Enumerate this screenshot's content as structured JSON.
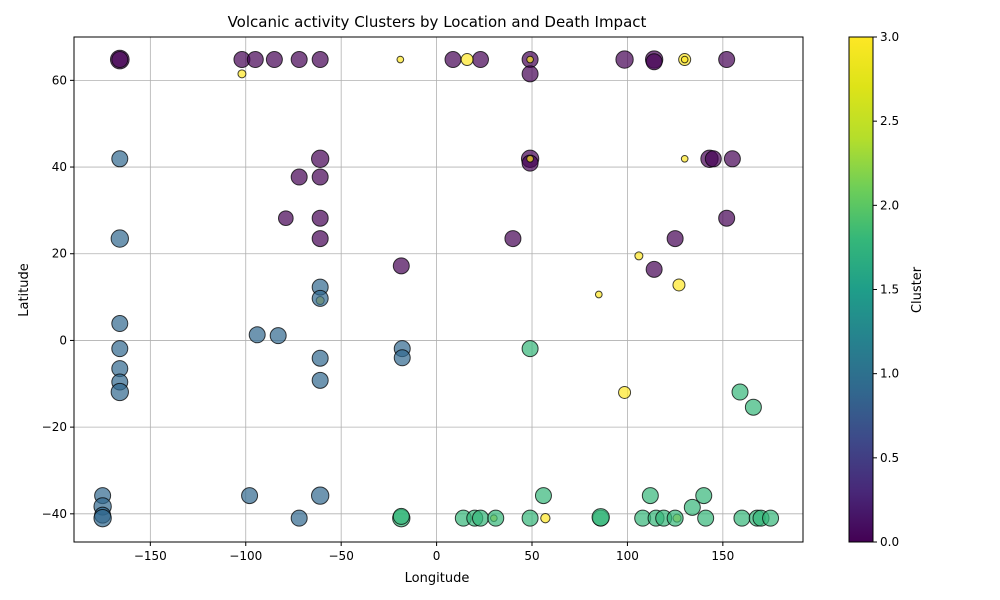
{
  "chart_data": {
    "type": "scatter",
    "title": "Volcanic activity Clusters by Location and Death Impact",
    "xlabel": "Longitude",
    "ylabel": "Latitude",
    "xlim": [
      -190,
      192
    ],
    "ylim": [
      -46.5,
      70
    ],
    "x_ticks": [
      -150,
      -100,
      -50,
      0,
      50,
      100,
      150
    ],
    "y_ticks": [
      -40,
      -20,
      0,
      20,
      40,
      60
    ],
    "x_tick_labels": [
      "−150",
      "−100",
      "−50",
      "0",
      "50",
      "100",
      "150"
    ],
    "y_tick_labels": [
      "−40",
      "−20",
      "0",
      "20",
      "40",
      "60"
    ],
    "grid": true,
    "colorbar": {
      "label": "Cluster",
      "range": [
        0,
        3
      ],
      "ticks": [
        0.0,
        0.5,
        1.0,
        1.5,
        2.0,
        2.5,
        3.0
      ],
      "tick_labels": [
        "0.0",
        "0.5",
        "1.0",
        "1.5",
        "2.0",
        "2.5",
        "3.0"
      ],
      "colormap": "viridis"
    },
    "points": [
      {
        "x": -166,
        "y": 64.8,
        "cluster": 0,
        "size": 14
      },
      {
        "x": -166,
        "y": 64.8,
        "cluster": 0,
        "size": 12
      },
      {
        "x": -102,
        "y": 64.8,
        "cluster": 0,
        "size": 12
      },
      {
        "x": -95,
        "y": 64.8,
        "cluster": 0,
        "size": 12
      },
      {
        "x": -85,
        "y": 64.8,
        "cluster": 0,
        "size": 12
      },
      {
        "x": -72,
        "y": 64.8,
        "cluster": 0,
        "size": 12
      },
      {
        "x": -61,
        "y": 64.8,
        "cluster": 0,
        "size": 12
      },
      {
        "x": 8.6,
        "y": 64.8,
        "cluster": 0,
        "size": 12
      },
      {
        "x": 23,
        "y": 64.8,
        "cluster": 0,
        "size": 12
      },
      {
        "x": 49,
        "y": 64.8,
        "cluster": 0,
        "size": 12
      },
      {
        "x": 49,
        "y": 61.5,
        "cluster": 0,
        "size": 12
      },
      {
        "x": 98.5,
        "y": 64.8,
        "cluster": 0,
        "size": 13
      },
      {
        "x": 114,
        "y": 64.8,
        "cluster": 0,
        "size": 13
      },
      {
        "x": 114,
        "y": 64.3,
        "cluster": 0,
        "size": 12
      },
      {
        "x": 152,
        "y": 64.8,
        "cluster": 0,
        "size": 12
      },
      {
        "x": -61,
        "y": 41.9,
        "cluster": 0,
        "size": 13
      },
      {
        "x": 49,
        "y": 41.9,
        "cluster": 0,
        "size": 13
      },
      {
        "x": 49,
        "y": 40.9,
        "cluster": 0,
        "size": 12
      },
      {
        "x": 143,
        "y": 41.9,
        "cluster": 0,
        "size": 13
      },
      {
        "x": 145,
        "y": 41.9,
        "cluster": 0,
        "size": 12
      },
      {
        "x": 155,
        "y": 41.9,
        "cluster": 0,
        "size": 12
      },
      {
        "x": -72,
        "y": 37.7,
        "cluster": 0,
        "size": 12
      },
      {
        "x": -61,
        "y": 37.7,
        "cluster": 0,
        "size": 12
      },
      {
        "x": -79,
        "y": 28.2,
        "cluster": 0,
        "size": 11
      },
      {
        "x": -61,
        "y": 28.2,
        "cluster": 0,
        "size": 12
      },
      {
        "x": 152,
        "y": 28.2,
        "cluster": 0,
        "size": 12
      },
      {
        "x": -61,
        "y": 23.5,
        "cluster": 0,
        "size": 12
      },
      {
        "x": 40,
        "y": 23.5,
        "cluster": 0,
        "size": 12
      },
      {
        "x": 125,
        "y": 23.5,
        "cluster": 0,
        "size": 12
      },
      {
        "x": -18.5,
        "y": 17.2,
        "cluster": 0,
        "size": 12
      },
      {
        "x": 114,
        "y": 16.4,
        "cluster": 0,
        "size": 12
      },
      {
        "x": -102,
        "y": 61.5,
        "cluster": 3,
        "size": 6
      },
      {
        "x": -19,
        "y": 64.8,
        "cluster": 3,
        "size": 5
      },
      {
        "x": 16,
        "y": 64.8,
        "cluster": 3,
        "size": 9
      },
      {
        "x": 49,
        "y": 64.8,
        "cluster": 3,
        "size": 5
      },
      {
        "x": 130,
        "y": 64.8,
        "cluster": 3,
        "size": 9
      },
      {
        "x": 130,
        "y": 64.8,
        "cluster": 3,
        "size": 5
      },
      {
        "x": 49,
        "y": 41.9,
        "cluster": 3,
        "size": 5
      },
      {
        "x": 130,
        "y": 41.9,
        "cluster": 3,
        "size": 5
      },
      {
        "x": 106,
        "y": 19.5,
        "cluster": 3,
        "size": 6
      },
      {
        "x": 127,
        "y": 12.8,
        "cluster": 3,
        "size": 9
      },
      {
        "x": 85,
        "y": 10.6,
        "cluster": 3,
        "size": 5
      },
      {
        "x": -61,
        "y": 9.2,
        "cluster": 3,
        "size": 6
      },
      {
        "x": 98.5,
        "y": -12,
        "cluster": 3,
        "size": 9
      },
      {
        "x": 57,
        "y": -41,
        "cluster": 3,
        "size": 7
      },
      {
        "x": 126,
        "y": -41,
        "cluster": 3,
        "size": 6
      },
      {
        "x": 30,
        "y": -41,
        "cluster": 3,
        "size": 5
      },
      {
        "x": -166,
        "y": 41.9,
        "cluster": 1,
        "size": 12
      },
      {
        "x": -166,
        "y": 23.5,
        "cluster": 1,
        "size": 13
      },
      {
        "x": -61,
        "y": 12.3,
        "cluster": 1,
        "size": 12
      },
      {
        "x": -61,
        "y": 9.7,
        "cluster": 1,
        "size": 12
      },
      {
        "x": -166,
        "y": 3.9,
        "cluster": 1,
        "size": 12
      },
      {
        "x": -94,
        "y": 1.3,
        "cluster": 1,
        "size": 12
      },
      {
        "x": -83,
        "y": 1.1,
        "cluster": 1,
        "size": 12
      },
      {
        "x": -166,
        "y": -1.9,
        "cluster": 1,
        "size": 12
      },
      {
        "x": -18,
        "y": -1.9,
        "cluster": 1,
        "size": 12
      },
      {
        "x": -18,
        "y": -4,
        "cluster": 1,
        "size": 12
      },
      {
        "x": -61,
        "y": -4.1,
        "cluster": 1,
        "size": 12
      },
      {
        "x": -166,
        "y": -6.5,
        "cluster": 1,
        "size": 12
      },
      {
        "x": -61,
        "y": -9.2,
        "cluster": 1,
        "size": 12
      },
      {
        "x": -166,
        "y": -9.6,
        "cluster": 1,
        "size": 12
      },
      {
        "x": -166,
        "y": -11.9,
        "cluster": 1,
        "size": 13
      },
      {
        "x": -175,
        "y": -35.8,
        "cluster": 1,
        "size": 12
      },
      {
        "x": -98,
        "y": -35.8,
        "cluster": 1,
        "size": 12
      },
      {
        "x": -61,
        "y": -35.8,
        "cluster": 1,
        "size": 13
      },
      {
        "x": -175,
        "y": -38.3,
        "cluster": 1,
        "size": 13
      },
      {
        "x": -175,
        "y": -40.3,
        "cluster": 1,
        "size": 12
      },
      {
        "x": -175,
        "y": -41,
        "cluster": 1,
        "size": 13
      },
      {
        "x": -72,
        "y": -41,
        "cluster": 1,
        "size": 12
      },
      {
        "x": 49,
        "y": -1.9,
        "cluster": 2,
        "size": 12
      },
      {
        "x": 159,
        "y": -11.9,
        "cluster": 2,
        "size": 12
      },
      {
        "x": 166,
        "y": -15.4,
        "cluster": 2,
        "size": 12
      },
      {
        "x": 56,
        "y": -35.8,
        "cluster": 2,
        "size": 12
      },
      {
        "x": 112,
        "y": -35.8,
        "cluster": 2,
        "size": 12
      },
      {
        "x": 140,
        "y": -35.8,
        "cluster": 2,
        "size": 12
      },
      {
        "x": 134,
        "y": -38.5,
        "cluster": 2,
        "size": 12
      },
      {
        "x": -18.5,
        "y": -41,
        "cluster": 2,
        "size": 13
      },
      {
        "x": -18.5,
        "y": -40.6,
        "cluster": 2,
        "size": 12
      },
      {
        "x": 14,
        "y": -41,
        "cluster": 2,
        "size": 12
      },
      {
        "x": 20,
        "y": -41,
        "cluster": 2,
        "size": 12
      },
      {
        "x": 23,
        "y": -41,
        "cluster": 2,
        "size": 12
      },
      {
        "x": 31,
        "y": -41,
        "cluster": 2,
        "size": 12
      },
      {
        "x": 49,
        "y": -41,
        "cluster": 2,
        "size": 12
      },
      {
        "x": 86,
        "y": -41,
        "cluster": 2,
        "size": 12
      },
      {
        "x": 86,
        "y": -40.8,
        "cluster": 2,
        "size": 13
      },
      {
        "x": 108,
        "y": -41,
        "cluster": 2,
        "size": 12
      },
      {
        "x": 115,
        "y": -41,
        "cluster": 2,
        "size": 12
      },
      {
        "x": 119,
        "y": -41,
        "cluster": 2,
        "size": 12
      },
      {
        "x": 125,
        "y": -41,
        "cluster": 2,
        "size": 12
      },
      {
        "x": 141,
        "y": -41,
        "cluster": 2,
        "size": 12
      },
      {
        "x": 160,
        "y": -41,
        "cluster": 2,
        "size": 12
      },
      {
        "x": 168,
        "y": -41,
        "cluster": 2,
        "size": 12
      },
      {
        "x": 170,
        "y": -41,
        "cluster": 2,
        "size": 12
      },
      {
        "x": 175,
        "y": -41,
        "cluster": 2,
        "size": 12
      }
    ]
  }
}
